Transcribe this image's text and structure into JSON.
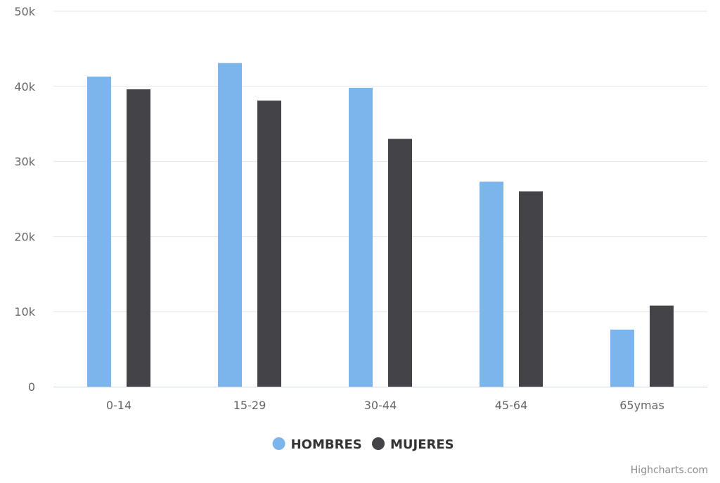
{
  "chart_data": {
    "type": "bar",
    "title": "",
    "xlabel": "",
    "ylabel": "",
    "categories": [
      "0-14",
      "15-29",
      "30-44",
      "45-64",
      "65ymas"
    ],
    "series": [
      {
        "name": "HOMBRES",
        "color": "#7cb5ec",
        "values": [
          41300,
          43100,
          39800,
          27300,
          7600
        ]
      },
      {
        "name": "MUJERES",
        "color": "#434348",
        "values": [
          39600,
          38100,
          33000,
          26000,
          10800
        ]
      }
    ],
    "ylim": [
      0,
      50000
    ],
    "yticks": [
      {
        "value": 0,
        "label": "0"
      },
      {
        "value": 10000,
        "label": "10k"
      },
      {
        "value": 20000,
        "label": "20k"
      },
      {
        "value": 30000,
        "label": "30k"
      },
      {
        "value": 40000,
        "label": "40k"
      },
      {
        "value": 50000,
        "label": "50k"
      }
    ],
    "grid": true,
    "legend_position": "bottom-center"
  },
  "credits": "Highcharts.com",
  "colors": {
    "gridline": "#e6e6e6",
    "axis_line": "#ccd6eb",
    "label_text": "#666666",
    "legend_text": "#333333"
  }
}
